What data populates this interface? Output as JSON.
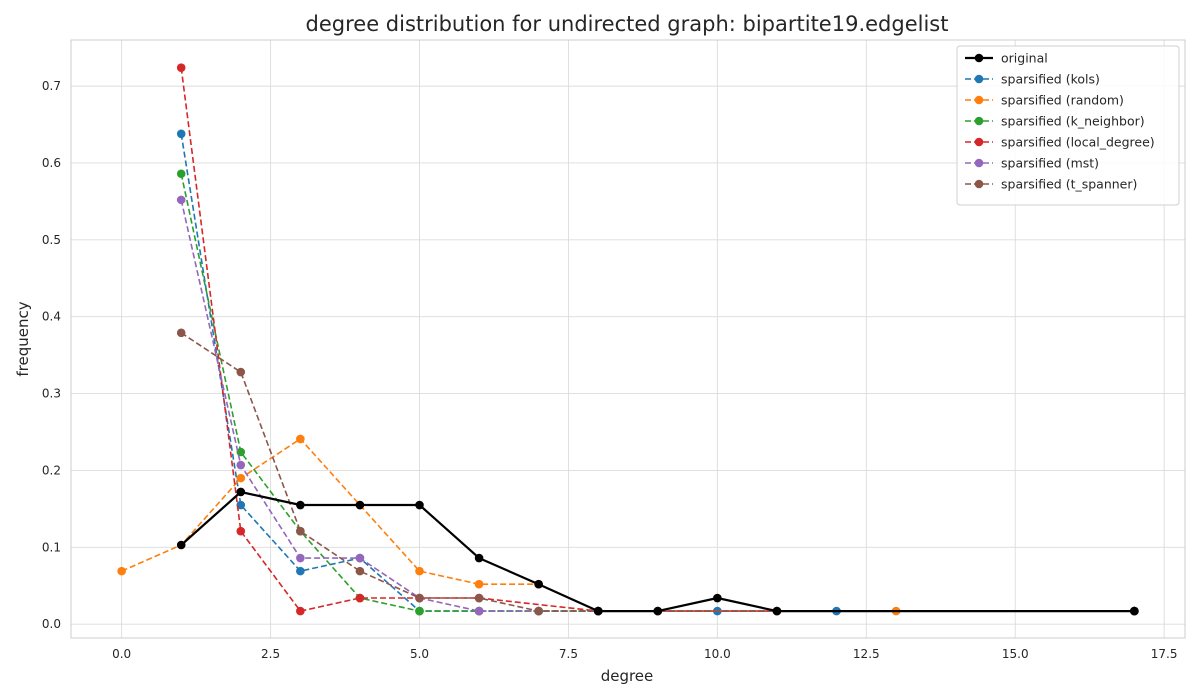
{
  "chart_data": {
    "type": "line",
    "title": "degree distribution for undirected graph: bipartite19.edgelist",
    "xlabel": "degree",
    "ylabel": "frequency",
    "xlim": [
      -0.85,
      17.85
    ],
    "ylim": [
      -0.018,
      0.76
    ],
    "xticks": [
      0.0,
      2.5,
      5.0,
      7.5,
      10.0,
      12.5,
      15.0,
      17.5
    ],
    "xtick_labels": [
      "0.0",
      "2.5",
      "5.0",
      "7.5",
      "10.0",
      "12.5",
      "15.0",
      "17.5"
    ],
    "yticks": [
      0.0,
      0.1,
      0.2,
      0.3,
      0.4,
      0.5,
      0.6,
      0.7
    ],
    "ytick_labels": [
      "0.0",
      "0.1",
      "0.2",
      "0.3",
      "0.4",
      "0.5",
      "0.6",
      "0.7"
    ],
    "grid": true,
    "legend_position": "top-right",
    "series": [
      {
        "name": "original",
        "color": "#000000",
        "style": "solid",
        "x": [
          1,
          2,
          3,
          4,
          5,
          6,
          7,
          8,
          9,
          10,
          11,
          17
        ],
        "y": [
          0.103,
          0.172,
          0.155,
          0.155,
          0.155,
          0.086,
          0.052,
          0.017,
          0.017,
          0.034,
          0.017,
          0.017
        ]
      },
      {
        "name": "sparsified (kols)",
        "color": "#1f77b4",
        "style": "dashed",
        "x": [
          1,
          2,
          3,
          4,
          5,
          6,
          7,
          8,
          9,
          10,
          11,
          12,
          17
        ],
        "y": [
          0.638,
          0.155,
          0.069,
          0.086,
          0.017,
          0.017,
          0.017,
          0.017,
          0.017,
          0.017,
          0.017,
          0.017,
          0.017
        ]
      },
      {
        "name": "sparsified (random)",
        "color": "#ff7f0e",
        "style": "dashed",
        "x": [
          0,
          1,
          2,
          3,
          4,
          5,
          6,
          7,
          8,
          9,
          11,
          13
        ],
        "y": [
          0.069,
          0.103,
          0.19,
          0.241,
          0.155,
          0.069,
          0.052,
          0.052,
          0.017,
          0.017,
          0.017,
          0.017
        ]
      },
      {
        "name": "sparsified (k_neighbor)",
        "color": "#2ca02c",
        "style": "dashed",
        "x": [
          1,
          2,
          3,
          4,
          5,
          6,
          7,
          8,
          17
        ],
        "y": [
          0.586,
          0.224,
          0.121,
          0.034,
          0.017,
          0.017,
          0.017,
          0.017,
          0.017
        ]
      },
      {
        "name": "sparsified (local_degree)",
        "color": "#d62728",
        "style": "dashed",
        "x": [
          1,
          2,
          3,
          4,
          5,
          6,
          8,
          17
        ],
        "y": [
          0.724,
          0.121,
          0.017,
          0.034,
          0.034,
          0.034,
          0.017,
          0.017
        ]
      },
      {
        "name": "sparsified (mst)",
        "color": "#9467bd",
        "style": "dashed",
        "x": [
          1,
          2,
          3,
          4,
          5,
          6,
          7,
          8,
          17
        ],
        "y": [
          0.552,
          0.207,
          0.086,
          0.086,
          0.034,
          0.017,
          0.017,
          0.017,
          0.017
        ]
      },
      {
        "name": "sparsified (t_spanner)",
        "color": "#8c564b",
        "style": "dashed",
        "x": [
          1,
          2,
          3,
          4,
          5,
          6,
          7,
          8,
          17
        ],
        "y": [
          0.379,
          0.328,
          0.121,
          0.069,
          0.034,
          0.034,
          0.017,
          0.017,
          0.017
        ]
      }
    ]
  }
}
